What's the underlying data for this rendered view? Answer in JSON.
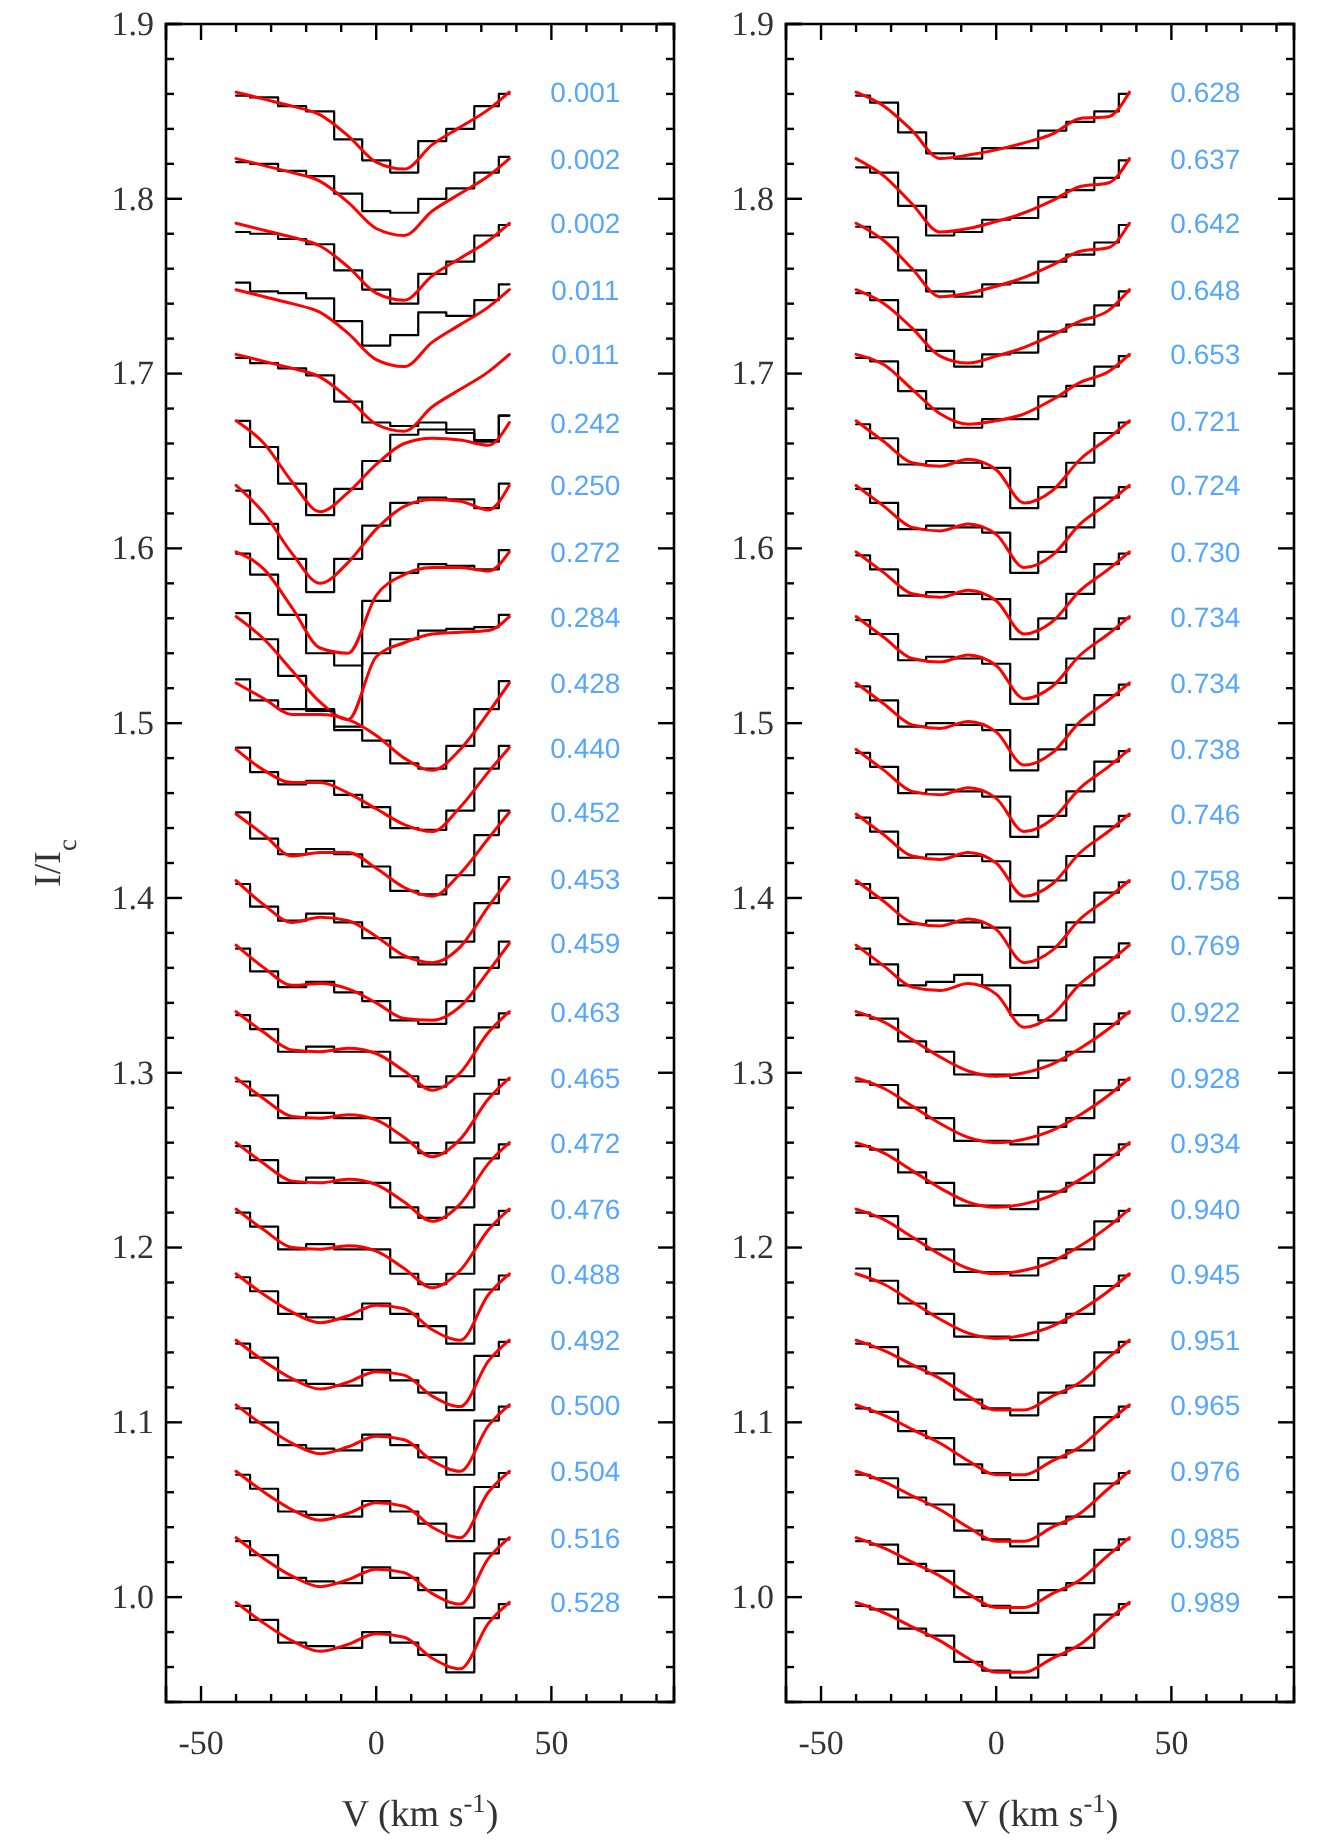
{
  "chart_data": [
    {
      "type": "line",
      "xlabel": "V (km s$^{-1}$)",
      "ylabel": "I/I$_{c}$",
      "xlim": [
        -60,
        85
      ],
      "ylim": [
        0.94,
        1.9
      ],
      "xticks": [
        -50,
        {
          "value": -40,
          "label": null
        },
        {
          "value": -30,
          "label": null
        },
        {
          "value": -20,
          "label": null
        },
        {
          "value": -10,
          "label": null
        },
        0,
        {
          "value": 10,
          "label": null
        },
        {
          "value": 20,
          "label": null
        },
        {
          "value": 30,
          "label": null
        },
        {
          "value": 40,
          "label": null
        },
        50,
        {
          "value": 60,
          "label": null
        },
        {
          "value": 70,
          "label": null
        },
        {
          "value": 80,
          "label": null
        }
      ],
      "yticks": [
        {
          "value": 0.94,
          "label": null
        },
        {
          "value": 0.96,
          "label": null
        },
        {
          "value": 0.98,
          "label": null
        },
        {
          "value": 1,
          "label": "1.0"
        },
        {
          "value": 1.02,
          "label": null
        },
        {
          "value": 1.04,
          "label": null
        },
        {
          "value": 1.06,
          "label": null
        },
        {
          "value": 1.08,
          "label": null
        },
        1.1,
        {
          "value": 1.12,
          "label": null
        },
        {
          "value": 1.14,
          "label": null
        },
        {
          "value": 1.16,
          "label": null
        },
        {
          "value": 1.18,
          "label": null
        },
        1.2,
        {
          "value": 1.22,
          "label": null
        },
        {
          "value": 1.24,
          "label": null
        },
        {
          "value": 1.26,
          "label": null
        },
        {
          "value": 1.28,
          "label": null
        },
        1.3,
        {
          "value": 1.32,
          "label": null
        },
        {
          "value": 1.34,
          "label": null
        },
        {
          "value": 1.36,
          "label": null
        },
        {
          "value": 1.38,
          "label": null
        },
        1.4,
        {
          "value": 1.42,
          "label": null
        },
        {
          "value": 1.44,
          "label": null
        },
        {
          "value": 1.46,
          "label": null
        },
        {
          "value": 1.48,
          "label": null
        },
        1.5,
        {
          "value": 1.52,
          "label": null
        },
        {
          "value": 1.54,
          "label": null
        },
        {
          "value": 1.56,
          "label": null
        },
        {
          "value": 1.58,
          "label": null
        },
        1.6,
        {
          "value": 1.62,
          "label": null
        },
        {
          "value": 1.64,
          "label": null
        },
        {
          "value": 1.66,
          "label": null
        },
        {
          "value": 1.68,
          "label": null
        },
        1.7,
        {
          "value": 1.72,
          "label": null
        },
        {
          "value": 1.74,
          "label": null
        },
        {
          "value": 1.76,
          "label": null
        },
        {
          "value": 1.78,
          "label": null
        },
        1.8,
        {
          "value": 1.82,
          "label": null
        },
        {
          "value": 1.84,
          "label": null
        },
        {
          "value": 1.86,
          "label": null
        },
        {
          "value": 1.88,
          "label": null
        },
        1.9
      ],
      "x": [
        -40,
        -32,
        -24,
        -16,
        -8,
        0,
        8,
        16,
        24,
        32,
        38
      ],
      "series": [
        {
          "type": "step",
          "color": "#000000",
          "values": [
            1.859,
            1.858,
            1.853,
            1.85,
            1.834,
            1.822,
            1.815,
            1.833,
            1.84,
            1.853,
            1.86
          ]
        },
        {
          "type": "line",
          "color": "#ff0000",
          "values": [
            1.861,
            1.857,
            1.853,
            1.848,
            1.836,
            1.821,
            1.817,
            1.831,
            1.841,
            1.851,
            1.861
          ]
        },
        {
          "type": "step",
          "color": "#000000",
          "values": [
            1.821,
            1.82,
            1.816,
            1.813,
            1.803,
            1.793,
            1.792,
            1.8,
            1.806,
            1.815,
            1.824
          ]
        },
        {
          "type": "line",
          "color": "#ff0000",
          "values": [
            1.823,
            1.819,
            1.815,
            1.81,
            1.798,
            1.783,
            1.779,
            1.793,
            1.803,
            1.813,
            1.823
          ]
        },
        {
          "type": "step",
          "color": "#000000",
          "values": [
            1.781,
            1.78,
            1.777,
            1.774,
            1.759,
            1.748,
            1.74,
            1.757,
            1.764,
            1.779,
            1.785
          ]
        },
        {
          "type": "line",
          "color": "#ff0000",
          "values": [
            1.786,
            1.782,
            1.778,
            1.773,
            1.761,
            1.746,
            1.742,
            1.756,
            1.766,
            1.776,
            1.786
          ]
        },
        {
          "type": "step",
          "color": "#000000",
          "values": [
            1.752,
            1.747,
            1.746,
            1.743,
            1.73,
            1.716,
            1.722,
            1.735,
            1.733,
            1.742,
            1.751
          ]
        },
        {
          "type": "line",
          "color": "#ff0000",
          "values": [
            1.748,
            1.744,
            1.74,
            1.735,
            1.723,
            1.708,
            1.704,
            1.718,
            1.728,
            1.738,
            1.748
          ]
        },
        {
          "type": "step",
          "color": "#000000",
          "values": [
            1.709,
            1.706,
            1.703,
            1.699,
            1.684,
            1.672,
            1.67,
            1.672,
            1.668,
            1.662,
            1.676
          ]
        },
        {
          "type": "line",
          "color": "#ff0000",
          "values": [
            1.711,
            1.707,
            1.703,
            1.698,
            1.686,
            1.671,
            1.667,
            1.681,
            1.691,
            1.701,
            1.711
          ]
        },
        {
          "type": "step",
          "color": "#000000",
          "values": [
            1.673,
            1.658,
            1.637,
            1.619,
            1.634,
            1.65,
            1.665,
            1.668,
            1.666,
            1.661,
            1.676
          ]
        },
        {
          "type": "line",
          "color": "#ff0000",
          "values": [
            1.673,
            1.66,
            1.638,
            1.621,
            1.632,
            1.648,
            1.66,
            1.663,
            1.662,
            1.659,
            1.672
          ]
        },
        {
          "type": "step",
          "color": "#000000",
          "values": [
            1.633,
            1.614,
            1.594,
            1.575,
            1.594,
            1.613,
            1.626,
            1.629,
            1.628,
            1.623,
            1.637
          ]
        },
        {
          "type": "line",
          "color": "#ff0000",
          "values": [
            1.636,
            1.62,
            1.597,
            1.58,
            1.592,
            1.611,
            1.624,
            1.628,
            1.627,
            1.622,
            1.636
          ]
        },
        {
          "type": "step",
          "color": "#000000",
          "values": [
            1.597,
            1.585,
            1.562,
            1.54,
            1.533,
            1.57,
            1.586,
            1.591,
            1.59,
            1.588,
            1.599
          ]
        },
        {
          "type": "line",
          "color": "#ff0000",
          "values": [
            1.598,
            1.588,
            1.566,
            1.543,
            1.54,
            1.573,
            1.585,
            1.589,
            1.589,
            1.587,
            1.598
          ]
        },
        {
          "type": "step",
          "color": "#000000",
          "values": [
            1.563,
            1.548,
            1.527,
            1.508,
            1.498,
            1.54,
            1.548,
            1.553,
            1.554,
            1.555,
            1.562
          ]
        },
        {
          "type": "line",
          "color": "#ff0000",
          "values": [
            1.561,
            1.548,
            1.53,
            1.512,
            1.502,
            1.538,
            1.546,
            1.551,
            1.552,
            1.553,
            1.561
          ]
        },
        {
          "type": "step",
          "color": "#000000",
          "values": [
            1.525,
            1.513,
            1.508,
            1.507,
            1.496,
            1.49,
            1.477,
            1.474,
            1.487,
            1.508,
            1.524
          ]
        },
        {
          "type": "line",
          "color": "#ff0000",
          "values": [
            1.523,
            1.514,
            1.505,
            1.505,
            1.502,
            1.493,
            1.48,
            1.473,
            1.485,
            1.506,
            1.523
          ]
        },
        {
          "type": "step",
          "color": "#000000",
          "values": [
            1.486,
            1.472,
            1.465,
            1.467,
            1.459,
            1.452,
            1.44,
            1.439,
            1.45,
            1.474,
            1.487
          ]
        },
        {
          "type": "line",
          "color": "#ff0000",
          "values": [
            1.485,
            1.473,
            1.466,
            1.466,
            1.46,
            1.451,
            1.442,
            1.438,
            1.452,
            1.472,
            1.486
          ]
        },
        {
          "type": "step",
          "color": "#000000",
          "values": [
            1.449,
            1.434,
            1.425,
            1.428,
            1.425,
            1.418,
            1.404,
            1.402,
            1.413,
            1.436,
            1.45
          ]
        },
        {
          "type": "line",
          "color": "#ff0000",
          "values": [
            1.448,
            1.436,
            1.424,
            1.426,
            1.426,
            1.417,
            1.406,
            1.401,
            1.414,
            1.434,
            1.449
          ]
        },
        {
          "type": "step",
          "color": "#000000",
          "values": [
            1.408,
            1.395,
            1.387,
            1.391,
            1.386,
            1.377,
            1.366,
            1.362,
            1.375,
            1.397,
            1.412
          ]
        },
        {
          "type": "line",
          "color": "#ff0000",
          "values": [
            1.41,
            1.396,
            1.386,
            1.389,
            1.387,
            1.378,
            1.367,
            1.363,
            1.372,
            1.395,
            1.411
          ]
        },
        {
          "type": "step",
          "color": "#000000",
          "values": [
            1.371,
            1.358,
            1.349,
            1.352,
            1.346,
            1.341,
            1.33,
            1.328,
            1.341,
            1.36,
            1.375
          ]
        },
        {
          "type": "line",
          "color": "#ff0000",
          "values": [
            1.373,
            1.36,
            1.35,
            1.351,
            1.348,
            1.34,
            1.331,
            1.33,
            1.338,
            1.358,
            1.374
          ]
        },
        {
          "type": "step",
          "color": "#000000",
          "values": [
            1.333,
            1.325,
            1.312,
            1.315,
            1.312,
            1.312,
            1.298,
            1.292,
            1.298,
            1.326,
            1.334
          ]
        },
        {
          "type": "line",
          "color": "#ff0000",
          "values": [
            1.335,
            1.323,
            1.313,
            1.312,
            1.314,
            1.311,
            1.301,
            1.29,
            1.3,
            1.323,
            1.335
          ]
        },
        {
          "type": "step",
          "color": "#000000",
          "values": [
            1.295,
            1.287,
            1.274,
            1.277,
            1.274,
            1.274,
            1.26,
            1.254,
            1.26,
            1.288,
            1.296
          ]
        },
        {
          "type": "line",
          "color": "#ff0000",
          "values": [
            1.297,
            1.285,
            1.275,
            1.274,
            1.276,
            1.273,
            1.263,
            1.252,
            1.262,
            1.285,
            1.297
          ]
        },
        {
          "type": "step",
          "color": "#000000",
          "values": [
            1.258,
            1.25,
            1.237,
            1.24,
            1.237,
            1.237,
            1.223,
            1.217,
            1.223,
            1.251,
            1.259
          ]
        },
        {
          "type": "line",
          "color": "#ff0000",
          "values": [
            1.26,
            1.248,
            1.238,
            1.237,
            1.239,
            1.236,
            1.226,
            1.215,
            1.225,
            1.248,
            1.26
          ]
        },
        {
          "type": "step",
          "color": "#000000",
          "values": [
            1.22,
            1.212,
            1.199,
            1.202,
            1.199,
            1.199,
            1.185,
            1.179,
            1.185,
            1.213,
            1.221
          ]
        },
        {
          "type": "line",
          "color": "#ff0000",
          "values": [
            1.222,
            1.21,
            1.2,
            1.199,
            1.201,
            1.198,
            1.188,
            1.177,
            1.187,
            1.21,
            1.222
          ]
        },
        {
          "type": "step",
          "color": "#000000",
          "values": [
            1.183,
            1.175,
            1.162,
            1.16,
            1.159,
            1.168,
            1.162,
            1.155,
            1.145,
            1.176,
            1.184
          ]
        },
        {
          "type": "line",
          "color": "#ff0000",
          "values": [
            1.185,
            1.173,
            1.163,
            1.157,
            1.161,
            1.167,
            1.165,
            1.153,
            1.147,
            1.173,
            1.185
          ]
        },
        {
          "type": "step",
          "color": "#000000",
          "values": [
            1.145,
            1.137,
            1.124,
            1.122,
            1.121,
            1.13,
            1.124,
            1.117,
            1.107,
            1.138,
            1.146
          ]
        },
        {
          "type": "line",
          "color": "#ff0000",
          "values": [
            1.147,
            1.135,
            1.125,
            1.119,
            1.123,
            1.129,
            1.127,
            1.115,
            1.109,
            1.135,
            1.147
          ]
        },
        {
          "type": "step",
          "color": "#000000",
          "values": [
            1.108,
            1.1,
            1.087,
            1.085,
            1.084,
            1.093,
            1.087,
            1.08,
            1.07,
            1.101,
            1.109
          ]
        },
        {
          "type": "line",
          "color": "#ff0000",
          "values": [
            1.11,
            1.098,
            1.088,
            1.082,
            1.086,
            1.092,
            1.09,
            1.078,
            1.072,
            1.098,
            1.11
          ]
        },
        {
          "type": "step",
          "color": "#000000",
          "values": [
            1.07,
            1.062,
            1.049,
            1.047,
            1.046,
            1.055,
            1.049,
            1.042,
            1.032,
            1.063,
            1.071
          ]
        },
        {
          "type": "line",
          "color": "#ff0000",
          "values": [
            1.072,
            1.06,
            1.05,
            1.044,
            1.048,
            1.054,
            1.052,
            1.04,
            1.034,
            1.06,
            1.072
          ]
        },
        {
          "type": "step",
          "color": "#000000",
          "values": [
            1.032,
            1.024,
            1.011,
            1.009,
            1.008,
            1.017,
            1.011,
            1.004,
            0.994,
            1.025,
            1.033
          ]
        },
        {
          "type": "line",
          "color": "#ff0000",
          "values": [
            1.034,
            1.022,
            1.012,
            1.006,
            1.01,
            1.016,
            1.014,
            1.002,
            0.996,
            1.022,
            1.034
          ]
        },
        {
          "type": "step",
          "color": "#000000",
          "values": [
            0.995,
            0.987,
            0.974,
            0.972,
            0.971,
            0.98,
            0.974,
            0.967,
            0.957,
            0.988,
            0.996
          ]
        },
        {
          "type": "line",
          "color": "#ff0000",
          "values": [
            0.997,
            0.985,
            0.975,
            0.969,
            0.973,
            0.979,
            0.977,
            0.965,
            0.959,
            0.985,
            0.997
          ]
        }
      ],
      "annotations": [
        "0.001",
        "0.002",
        "0.002",
        "0.011",
        "0.011",
        "0.242",
        "0.250",
        "0.272",
        "0.284",
        "0.428",
        "0.440",
        "0.452",
        "0.453",
        "0.459",
        "0.463",
        "0.465",
        "0.472",
        "0.476",
        "0.488",
        "0.492",
        "0.500",
        "0.504",
        "0.516",
        "0.528"
      ]
    },
    {
      "type": "line",
      "xlabel": "V (km s$^{-1}$)",
      "xlim": [
        -60,
        85
      ],
      "ylim": [
        0.94,
        1.9
      ],
      "xticks": [
        -50,
        {
          "value": -40,
          "label": null
        },
        {
          "value": -30,
          "label": null
        },
        {
          "value": -20,
          "label": null
        },
        {
          "value": -10,
          "label": null
        },
        0,
        {
          "value": 10,
          "label": null
        },
        {
          "value": 20,
          "label": null
        },
        {
          "value": 30,
          "label": null
        },
        {
          "value": 40,
          "label": null
        },
        50,
        {
          "value": 60,
          "label": null
        },
        {
          "value": 70,
          "label": null
        },
        {
          "value": 80,
          "label": null
        }
      ],
      "yticks": [
        {
          "value": 0.94,
          "label": null
        },
        {
          "value": 0.96,
          "label": null
        },
        {
          "value": 0.98,
          "label": null
        },
        {
          "value": 1,
          "label": "1.0"
        },
        {
          "value": 1.02,
          "label": null
        },
        {
          "value": 1.04,
          "label": null
        },
        {
          "value": 1.06,
          "label": null
        },
        {
          "value": 1.08,
          "label": null
        },
        1.1,
        {
          "value": 1.12,
          "label": null
        },
        {
          "value": 1.14,
          "label": null
        },
        {
          "value": 1.16,
          "label": null
        },
        {
          "value": 1.18,
          "label": null
        },
        1.2,
        {
          "value": 1.22,
          "label": null
        },
        {
          "value": 1.24,
          "label": null
        },
        {
          "value": 1.26,
          "label": null
        },
        {
          "value": 1.28,
          "label": null
        },
        1.3,
        {
          "value": 1.32,
          "label": null
        },
        {
          "value": 1.34,
          "label": null
        },
        {
          "value": 1.36,
          "label": null
        },
        {
          "value": 1.38,
          "label": null
        },
        1.4,
        {
          "value": 1.42,
          "label": null
        },
        {
          "value": 1.44,
          "label": null
        },
        {
          "value": 1.46,
          "label": null
        },
        {
          "value": 1.48,
          "label": null
        },
        1.5,
        {
          "value": 1.52,
          "label": null
        },
        {
          "value": 1.54,
          "label": null
        },
        {
          "value": 1.56,
          "label": null
        },
        {
          "value": 1.58,
          "label": null
        },
        1.6,
        {
          "value": 1.62,
          "label": null
        },
        {
          "value": 1.64,
          "label": null
        },
        {
          "value": 1.66,
          "label": null
        },
        {
          "value": 1.68,
          "label": null
        },
        1.7,
        {
          "value": 1.72,
          "label": null
        },
        {
          "value": 1.74,
          "label": null
        },
        {
          "value": 1.76,
          "label": null
        },
        {
          "value": 1.78,
          "label": null
        },
        1.8,
        {
          "value": 1.82,
          "label": null
        },
        {
          "value": 1.84,
          "label": null
        },
        {
          "value": 1.86,
          "label": null
        },
        {
          "value": 1.88,
          "label": null
        },
        1.9
      ],
      "x": [
        -40,
        -32,
        -24,
        -16,
        -8,
        0,
        8,
        16,
        24,
        32,
        38
      ],
      "series": [
        {
          "type": "step",
          "color": "#000000",
          "values": [
            1.859,
            1.855,
            1.838,
            1.826,
            1.823,
            1.829,
            1.829,
            1.839,
            1.844,
            1.85,
            1.86
          ]
        },
        {
          "type": "line",
          "color": "#ff0000",
          "values": [
            1.861,
            1.853,
            1.839,
            1.823,
            1.825,
            1.828,
            1.832,
            1.837,
            1.846,
            1.847,
            1.861
          ]
        },
        {
          "type": "step",
          "color": "#000000",
          "values": [
            1.818,
            1.815,
            1.796,
            1.779,
            1.781,
            1.788,
            1.789,
            1.801,
            1.805,
            1.812,
            1.822
          ]
        },
        {
          "type": "line",
          "color": "#ff0000",
          "values": [
            1.823,
            1.813,
            1.797,
            1.781,
            1.783,
            1.787,
            1.792,
            1.799,
            1.807,
            1.809,
            1.823
          ]
        },
        {
          "type": "step",
          "color": "#000000",
          "values": [
            1.784,
            1.778,
            1.759,
            1.747,
            1.744,
            1.751,
            1.752,
            1.764,
            1.768,
            1.775,
            1.785
          ]
        },
        {
          "type": "line",
          "color": "#ff0000",
          "values": [
            1.786,
            1.776,
            1.76,
            1.744,
            1.746,
            1.75,
            1.755,
            1.762,
            1.77,
            1.772,
            1.786
          ]
        },
        {
          "type": "step",
          "color": "#000000",
          "values": [
            1.746,
            1.742,
            1.725,
            1.713,
            1.704,
            1.711,
            1.712,
            1.724,
            1.728,
            1.739,
            1.747
          ]
        },
        {
          "type": "line",
          "color": "#ff0000",
          "values": [
            1.748,
            1.74,
            1.726,
            1.71,
            1.706,
            1.71,
            1.715,
            1.722,
            1.73,
            1.736,
            1.748
          ]
        },
        {
          "type": "step",
          "color": "#000000",
          "values": [
            1.709,
            1.707,
            1.69,
            1.68,
            1.669,
            1.674,
            1.674,
            1.687,
            1.693,
            1.704,
            1.71
          ]
        },
        {
          "type": "line",
          "color": "#ff0000",
          "values": [
            1.711,
            1.705,
            1.691,
            1.677,
            1.671,
            1.673,
            1.677,
            1.685,
            1.695,
            1.701,
            1.711
          ]
        },
        {
          "type": "step",
          "color": "#000000",
          "values": [
            1.671,
            1.663,
            1.648,
            1.65,
            1.649,
            1.646,
            1.623,
            1.635,
            1.649,
            1.666,
            1.672
          ]
        },
        {
          "type": "line",
          "color": "#ff0000",
          "values": [
            1.673,
            1.661,
            1.649,
            1.647,
            1.651,
            1.645,
            1.626,
            1.633,
            1.651,
            1.663,
            1.673
          ]
        },
        {
          "type": "step",
          "color": "#000000",
          "values": [
            1.634,
            1.626,
            1.611,
            1.613,
            1.612,
            1.609,
            1.586,
            1.598,
            1.612,
            1.629,
            1.635
          ]
        },
        {
          "type": "line",
          "color": "#ff0000",
          "values": [
            1.636,
            1.624,
            1.612,
            1.61,
            1.614,
            1.608,
            1.589,
            1.596,
            1.614,
            1.626,
            1.636
          ]
        },
        {
          "type": "step",
          "color": "#000000",
          "values": [
            1.596,
            1.588,
            1.573,
            1.575,
            1.574,
            1.571,
            1.548,
            1.56,
            1.574,
            1.591,
            1.597
          ]
        },
        {
          "type": "line",
          "color": "#ff0000",
          "values": [
            1.598,
            1.586,
            1.574,
            1.572,
            1.576,
            1.57,
            1.551,
            1.558,
            1.576,
            1.588,
            1.598
          ]
        },
        {
          "type": "step",
          "color": "#000000",
          "values": [
            1.559,
            1.551,
            1.536,
            1.538,
            1.537,
            1.534,
            1.511,
            1.523,
            1.537,
            1.554,
            1.56
          ]
        },
        {
          "type": "line",
          "color": "#ff0000",
          "values": [
            1.561,
            1.549,
            1.537,
            1.535,
            1.539,
            1.533,
            1.514,
            1.521,
            1.539,
            1.551,
            1.561
          ]
        },
        {
          "type": "step",
          "color": "#000000",
          "values": [
            1.521,
            1.513,
            1.498,
            1.5,
            1.499,
            1.496,
            1.473,
            1.485,
            1.499,
            1.516,
            1.522
          ]
        },
        {
          "type": "line",
          "color": "#ff0000",
          "values": [
            1.523,
            1.511,
            1.499,
            1.497,
            1.501,
            1.495,
            1.476,
            1.483,
            1.501,
            1.513,
            1.523
          ]
        },
        {
          "type": "step",
          "color": "#000000",
          "values": [
            1.483,
            1.475,
            1.46,
            1.462,
            1.461,
            1.458,
            1.435,
            1.447,
            1.461,
            1.478,
            1.484
          ]
        },
        {
          "type": "line",
          "color": "#ff0000",
          "values": [
            1.485,
            1.473,
            1.461,
            1.459,
            1.463,
            1.457,
            1.438,
            1.445,
            1.463,
            1.475,
            1.485
          ]
        },
        {
          "type": "step",
          "color": "#000000",
          "values": [
            1.446,
            1.438,
            1.423,
            1.425,
            1.424,
            1.421,
            1.398,
            1.41,
            1.424,
            1.441,
            1.447
          ]
        },
        {
          "type": "line",
          "color": "#ff0000",
          "values": [
            1.448,
            1.436,
            1.424,
            1.422,
            1.426,
            1.42,
            1.401,
            1.408,
            1.426,
            1.438,
            1.448
          ]
        },
        {
          "type": "step",
          "color": "#000000",
          "values": [
            1.408,
            1.4,
            1.385,
            1.387,
            1.386,
            1.383,
            1.36,
            1.372,
            1.386,
            1.403,
            1.409
          ]
        },
        {
          "type": "line",
          "color": "#ff0000",
          "values": [
            1.41,
            1.398,
            1.386,
            1.384,
            1.388,
            1.382,
            1.363,
            1.37,
            1.388,
            1.4,
            1.41
          ]
        },
        {
          "type": "step",
          "color": "#000000",
          "values": [
            1.371,
            1.362,
            1.35,
            1.352,
            1.356,
            1.35,
            1.333,
            1.33,
            1.35,
            1.366,
            1.374
          ]
        },
        {
          "type": "line",
          "color": "#ff0000",
          "values": [
            1.373,
            1.361,
            1.349,
            1.347,
            1.351,
            1.345,
            1.326,
            1.333,
            1.351,
            1.363,
            1.373
          ]
        },
        {
          "type": "step",
          "color": "#000000",
          "values": [
            1.333,
            1.331,
            1.318,
            1.312,
            1.299,
            1.299,
            1.297,
            1.307,
            1.312,
            1.328,
            1.334
          ]
        },
        {
          "type": "line",
          "color": "#ff0000",
          "values": [
            1.335,
            1.329,
            1.319,
            1.309,
            1.301,
            1.298,
            1.3,
            1.305,
            1.314,
            1.325,
            1.335
          ]
        },
        {
          "type": "step",
          "color": "#000000",
          "values": [
            1.295,
            1.293,
            1.28,
            1.274,
            1.261,
            1.261,
            1.259,
            1.269,
            1.274,
            1.29,
            1.296
          ]
        },
        {
          "type": "line",
          "color": "#ff0000",
          "values": [
            1.297,
            1.291,
            1.281,
            1.271,
            1.263,
            1.26,
            1.262,
            1.267,
            1.276,
            1.287,
            1.297
          ]
        },
        {
          "type": "step",
          "color": "#000000",
          "values": [
            1.258,
            1.256,
            1.243,
            1.237,
            1.224,
            1.224,
            1.222,
            1.232,
            1.237,
            1.253,
            1.259
          ]
        },
        {
          "type": "line",
          "color": "#ff0000",
          "values": [
            1.26,
            1.254,
            1.244,
            1.234,
            1.226,
            1.223,
            1.225,
            1.23,
            1.239,
            1.25,
            1.26
          ]
        },
        {
          "type": "step",
          "color": "#000000",
          "values": [
            1.22,
            1.218,
            1.205,
            1.199,
            1.186,
            1.186,
            1.184,
            1.194,
            1.199,
            1.215,
            1.221
          ]
        },
        {
          "type": "line",
          "color": "#ff0000",
          "values": [
            1.222,
            1.216,
            1.206,
            1.196,
            1.188,
            1.185,
            1.187,
            1.192,
            1.201,
            1.212,
            1.222
          ]
        },
        {
          "type": "step",
          "color": "#000000",
          "values": [
            1.188,
            1.181,
            1.168,
            1.162,
            1.149,
            1.149,
            1.147,
            1.157,
            1.162,
            1.178,
            1.184
          ]
        },
        {
          "type": "line",
          "color": "#ff0000",
          "values": [
            1.185,
            1.179,
            1.169,
            1.159,
            1.151,
            1.148,
            1.15,
            1.155,
            1.164,
            1.175,
            1.185
          ]
        },
        {
          "type": "step",
          "color": "#000000",
          "values": [
            1.145,
            1.143,
            1.132,
            1.128,
            1.113,
            1.108,
            1.104,
            1.117,
            1.121,
            1.14,
            1.146
          ]
        },
        {
          "type": "line",
          "color": "#ff0000",
          "values": [
            1.147,
            1.141,
            1.133,
            1.125,
            1.115,
            1.107,
            1.107,
            1.115,
            1.123,
            1.137,
            1.147
          ]
        },
        {
          "type": "step",
          "color": "#000000",
          "values": [
            1.108,
            1.106,
            1.095,
            1.091,
            1.076,
            1.071,
            1.067,
            1.08,
            1.084,
            1.103,
            1.109
          ]
        },
        {
          "type": "line",
          "color": "#ff0000",
          "values": [
            1.11,
            1.104,
            1.096,
            1.088,
            1.078,
            1.07,
            1.07,
            1.078,
            1.086,
            1.1,
            1.11
          ]
        },
        {
          "type": "step",
          "color": "#000000",
          "values": [
            1.07,
            1.068,
            1.057,
            1.053,
            1.038,
            1.033,
            1.029,
            1.042,
            1.046,
            1.065,
            1.071
          ]
        },
        {
          "type": "line",
          "color": "#ff0000",
          "values": [
            1.072,
            1.066,
            1.058,
            1.05,
            1.04,
            1.032,
            1.032,
            1.04,
            1.048,
            1.062,
            1.072
          ]
        },
        {
          "type": "step",
          "color": "#000000",
          "values": [
            1.032,
            1.03,
            1.019,
            1.015,
            1.0,
            0.995,
            0.991,
            1.004,
            1.008,
            1.027,
            1.033
          ]
        },
        {
          "type": "line",
          "color": "#ff0000",
          "values": [
            1.034,
            1.028,
            1.02,
            1.012,
            1.002,
            0.994,
            0.994,
            1.002,
            1.01,
            1.024,
            1.034
          ]
        },
        {
          "type": "step",
          "color": "#000000",
          "values": [
            0.995,
            0.993,
            0.982,
            0.978,
            0.963,
            0.958,
            0.954,
            0.967,
            0.971,
            0.99,
            0.996
          ]
        },
        {
          "type": "line",
          "color": "#ff0000",
          "values": [
            0.997,
            0.991,
            0.983,
            0.975,
            0.965,
            0.957,
            0.957,
            0.965,
            0.973,
            0.987,
            0.997
          ]
        }
      ],
      "annotations": [
        "0.628",
        "0.637",
        "0.642",
        "0.648",
        "0.653",
        "0.721",
        "0.724",
        "0.730",
        "0.734",
        "0.734",
        "0.738",
        "0.746",
        "0.758",
        "0.769",
        "0.922",
        "0.928",
        "0.934",
        "0.940",
        "0.945",
        "0.951",
        "0.965",
        "0.976",
        "0.985",
        "0.989"
      ]
    }
  ]
}
